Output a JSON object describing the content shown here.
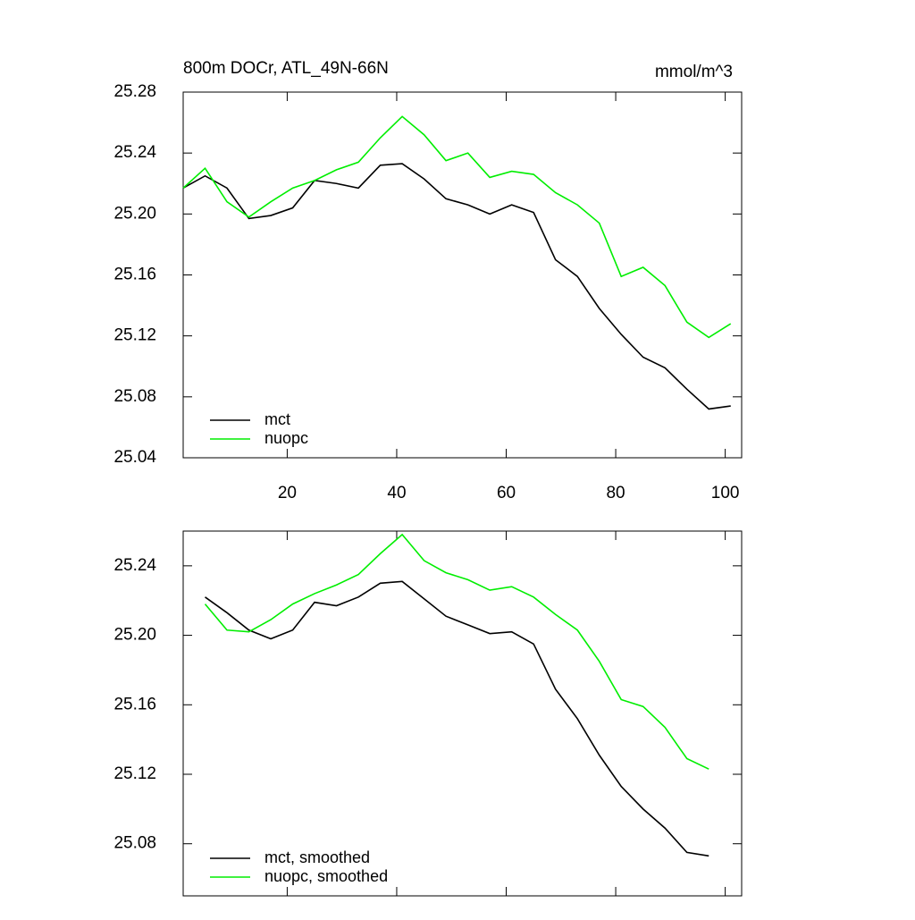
{
  "chart_data": [
    {
      "type": "line",
      "title": "800m DOCr, ATL_49N-66N",
      "units": "mmol/m^3",
      "x": [
        1,
        5,
        9,
        13,
        17,
        21,
        25,
        29,
        33,
        37,
        41,
        45,
        49,
        53,
        57,
        61,
        65,
        69,
        73,
        77,
        81,
        85,
        89,
        93,
        97,
        101
      ],
      "series": [
        {
          "name": "mct",
          "color": "#000000",
          "values": [
            25.217,
            25.225,
            25.217,
            25.197,
            25.199,
            25.204,
            25.222,
            25.22,
            25.217,
            25.232,
            25.233,
            25.223,
            25.21,
            25.206,
            25.2,
            25.206,
            25.201,
            25.17,
            25.159,
            25.138,
            25.121,
            25.106,
            25.099,
            25.085,
            25.072,
            25.074
          ]
        },
        {
          "name": "nuopc",
          "color": "#00ee00",
          "values": [
            25.217,
            25.23,
            25.208,
            25.198,
            25.208,
            25.217,
            25.222,
            25.229,
            25.234,
            25.25,
            25.264,
            25.252,
            25.235,
            25.24,
            25.224,
            25.228,
            25.226,
            25.214,
            25.206,
            25.194,
            25.159,
            25.165,
            25.153,
            25.129,
            25.119,
            25.128
          ]
        }
      ],
      "xlim": [
        1,
        103
      ],
      "xticks": [
        20,
        40,
        60,
        80,
        100
      ],
      "xtick_labels": true,
      "ylim": [
        25.04,
        25.28
      ],
      "yticks": [
        25.04,
        25.08,
        25.12,
        25.16,
        {
          "value": 25.2,
          "label": "25.20"
        },
        25.24,
        25.28
      ],
      "legend": "lower left"
    },
    {
      "type": "line",
      "x": [
        5,
        9,
        13,
        17,
        21,
        25,
        29,
        33,
        37,
        41,
        45,
        49,
        53,
        57,
        61,
        65,
        69,
        73,
        77,
        81,
        85,
        89,
        93,
        97
      ],
      "series": [
        {
          "name": "mct, smoothed",
          "color": "#000000",
          "values": [
            25.222,
            25.213,
            25.203,
            25.198,
            25.203,
            25.219,
            25.217,
            25.222,
            25.23,
            25.231,
            25.221,
            25.211,
            25.206,
            25.201,
            25.202,
            25.195,
            25.169,
            25.152,
            25.131,
            25.113,
            25.1,
            25.089,
            25.075,
            25.073
          ]
        },
        {
          "name": "nuopc, smoothed",
          "color": "#00ee00",
          "values": [
            25.218,
            25.203,
            25.202,
            25.209,
            25.218,
            25.224,
            25.229,
            25.235,
            25.247,
            25.258,
            25.243,
            25.236,
            25.232,
            25.226,
            25.228,
            25.222,
            25.212,
            25.203,
            25.185,
            25.163,
            25.159,
            25.147,
            25.129,
            25.123
          ]
        }
      ],
      "xlim": [
        1,
        103
      ],
      "xticks": [
        20,
        40,
        60,
        80,
        100
      ],
      "xtick_labels": false,
      "ylim": [
        25.05,
        25.26
      ],
      "yticks": [
        25.08,
        25.12,
        25.16,
        {
          "value": 25.2,
          "label": "25.20"
        },
        25.24
      ],
      "legend": "lower left"
    }
  ]
}
